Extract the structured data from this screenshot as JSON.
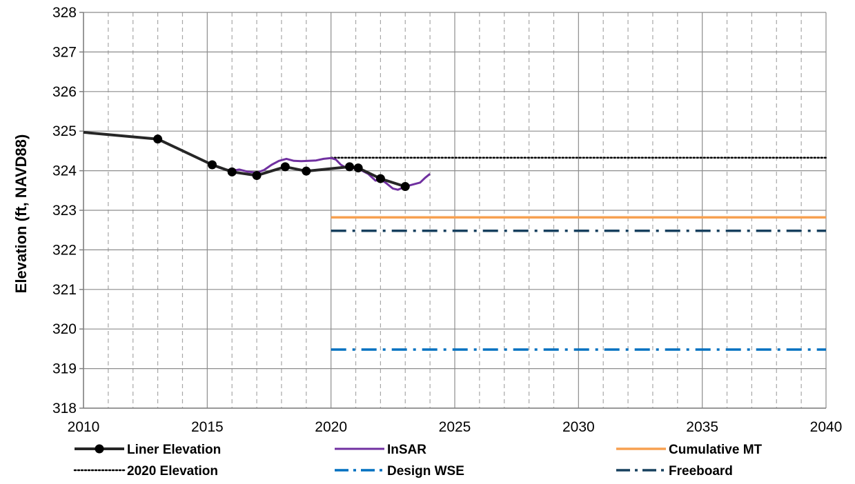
{
  "chart_data": {
    "type": "line",
    "title": "",
    "xlabel": "",
    "ylabel": "Elevation (ft, NAVD88)",
    "xlim": [
      2010,
      2040
    ],
    "ylim": [
      318,
      328
    ],
    "x_ticks": [
      "2010",
      "2015",
      "2020",
      "2025",
      "2030",
      "2035",
      "2040"
    ],
    "y_ticks": [
      "318",
      "319",
      "320",
      "321",
      "322",
      "323",
      "324",
      "325",
      "326",
      "327",
      "328"
    ],
    "grid": {
      "major": "solid",
      "minor_x": "dashed"
    },
    "legend_position": "bottom",
    "series": [
      {
        "name": "Liner Elevation",
        "color": "#262626",
        "style": "solid-markers",
        "x": [
          2010.0,
          2013.0,
          2015.2,
          2016.0,
          2017.0,
          2018.15,
          2019.0,
          2020.75,
          2021.1,
          2022.0,
          2023.0
        ],
        "y": [
          324.97,
          324.8,
          324.15,
          323.97,
          323.88,
          324.1,
          323.99,
          324.1,
          324.07,
          323.8,
          323.6
        ]
      },
      {
        "name": "InSAR",
        "color": "#7030A0",
        "style": "solid",
        "x": [
          2015.3,
          2015.6,
          2016.0,
          2016.3,
          2016.6,
          2017.0,
          2017.3,
          2017.6,
          2017.9,
          2018.2,
          2018.5,
          2018.8,
          2019.1,
          2019.4,
          2019.7,
          2020.0,
          2020.2,
          2020.4,
          2020.6,
          2020.8,
          2021.0,
          2021.2,
          2021.5,
          2021.8,
          2022.0,
          2022.2,
          2022.5,
          2022.7,
          2023.0,
          2023.3,
          2023.6,
          2023.8,
          2024.0
        ],
        "y": [
          324.12,
          324.05,
          324.0,
          324.03,
          323.98,
          323.95,
          324.02,
          324.15,
          324.25,
          324.3,
          324.25,
          324.24,
          324.25,
          324.26,
          324.3,
          324.32,
          324.28,
          324.15,
          324.08,
          324.05,
          324.07,
          324.02,
          323.92,
          323.75,
          323.78,
          323.7,
          323.55,
          323.52,
          323.6,
          323.65,
          323.7,
          323.82,
          323.92
        ]
      },
      {
        "name": "Cumulative MT",
        "color": "#F7A050",
        "style": "solid",
        "x": [
          2020,
          2040
        ],
        "y": [
          322.82,
          322.82
        ]
      },
      {
        "name": "2020 Elevation",
        "color": "#000000",
        "style": "dotted",
        "x": [
          2020,
          2040
        ],
        "y": [
          324.33,
          324.33
        ]
      },
      {
        "name": "Design WSE",
        "color": "#0070C0",
        "style": "dashdot",
        "x": [
          2020,
          2040
        ],
        "y": [
          319.48,
          319.48
        ]
      },
      {
        "name": "Freeboard",
        "color": "#17405E",
        "style": "dashdot",
        "x": [
          2020,
          2040
        ],
        "y": [
          322.48,
          322.48
        ]
      }
    ]
  }
}
